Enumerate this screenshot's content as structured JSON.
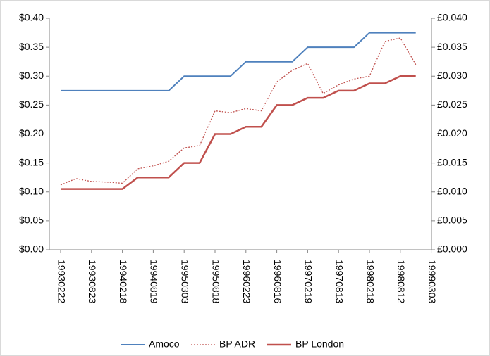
{
  "chart_data": {
    "type": "line",
    "categories": [
      "19930222",
      null,
      "19930823",
      null,
      "19940218",
      null,
      "19940819",
      null,
      "19950303",
      null,
      "19950818",
      null,
      "19960223",
      null,
      "19960816",
      null,
      "19970219",
      null,
      "19970813",
      null,
      "19980218",
      null,
      "19980812",
      null,
      "19990303"
    ],
    "series": [
      {
        "name": "Amoco",
        "color": "#4f81bd",
        "style": "solid",
        "values": [
          0.275,
          0.275,
          0.275,
          0.275,
          0.275,
          0.275,
          0.275,
          0.275,
          0.3,
          0.3,
          0.3,
          0.3,
          0.325,
          0.325,
          0.325,
          0.325,
          0.35,
          0.35,
          0.35,
          0.35,
          0.375,
          0.375,
          0.375,
          0.375,
          null
        ]
      },
      {
        "name": "BP ADR",
        "color": "#c0504d",
        "style": "dotted",
        "values": [
          0.112,
          0.123,
          0.118,
          0.117,
          0.115,
          0.14,
          0.145,
          0.153,
          0.176,
          0.18,
          0.24,
          0.237,
          0.244,
          0.24,
          0.29,
          0.31,
          0.322,
          0.27,
          0.285,
          0.295,
          0.3,
          0.36,
          0.366,
          0.32,
          null
        ]
      },
      {
        "name": "BP London",
        "color": "#c0504d",
        "style": "solid",
        "axis": "y2",
        "values": [
          0.0105,
          0.0105,
          0.0105,
          0.0105,
          0.0105,
          0.0125,
          0.0125,
          0.0125,
          0.015,
          0.015,
          0.02,
          0.02,
          0.02125,
          0.02125,
          0.025,
          0.025,
          0.02625,
          0.02625,
          0.0275,
          0.0275,
          0.02875,
          0.02875,
          0.03,
          0.03,
          null
        ]
      }
    ],
    "ylim": [
      0,
      0.4
    ],
    "yticks": [
      {
        "value": 0,
        "label": "$0.00"
      },
      {
        "value": 0.05,
        "label": "$0.05"
      },
      {
        "value": 0.1,
        "label": "$0.10"
      },
      {
        "value": 0.15,
        "label": "$0.15"
      },
      {
        "value": 0.2,
        "label": "$0.20"
      },
      {
        "value": 0.25,
        "label": "$0.25"
      },
      {
        "value": 0.3,
        "label": "$0.30"
      },
      {
        "value": 0.35,
        "label": "$0.35"
      },
      {
        "value": 0.4,
        "label": "$0.40"
      }
    ],
    "y2lim": [
      0,
      0.04
    ],
    "y2ticks": [
      {
        "value": 0,
        "label": "£0.000"
      },
      {
        "value": 0.005,
        "label": "£0.005"
      },
      {
        "value": 0.01,
        "label": "£0.010"
      },
      {
        "value": 0.015,
        "label": "£0.015"
      },
      {
        "value": 0.02,
        "label": "£0.020"
      },
      {
        "value": 0.025,
        "label": "£0.025"
      },
      {
        "value": 0.03,
        "label": "£0.030"
      },
      {
        "value": 0.035,
        "label": "£0.035"
      },
      {
        "value": 0.04,
        "label": "£0.040"
      }
    ],
    "grid": false,
    "legend": "bottom"
  }
}
